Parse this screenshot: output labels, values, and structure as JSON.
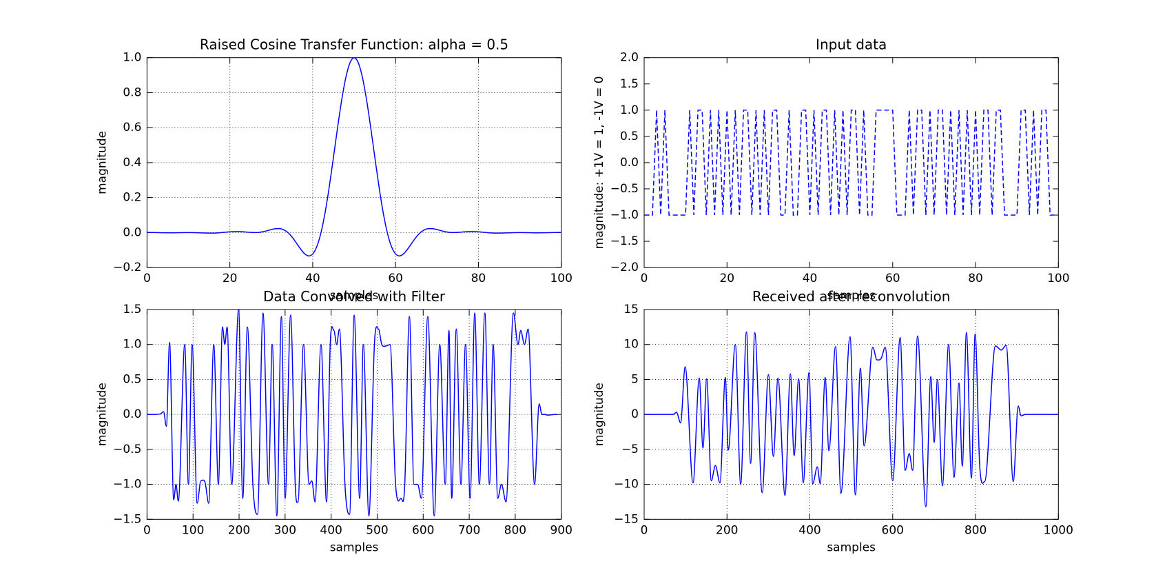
{
  "chart_data": [
    {
      "type": "line",
      "title": "Raised Cosine Transfer Function: alpha = 0.5",
      "xlabel": "samples",
      "ylabel": "magnitude",
      "color": "#0000ff",
      "linestyle": "solid",
      "grid": true,
      "xlim": [
        0,
        100
      ],
      "xticks": [
        0,
        20,
        40,
        60,
        80,
        100
      ],
      "ylim": [
        -0.2,
        1
      ],
      "yticks": [
        {
          "value": -0.2,
          "label": "−0.2"
        },
        {
          "value": 0,
          "label": "0.0"
        },
        0.2,
        0.4,
        0.6,
        0.8,
        {
          "value": 1,
          "label": "1.0"
        }
      ],
      "x": [
        0,
        2,
        4,
        6,
        8,
        10,
        12,
        14,
        16,
        18,
        20,
        22,
        24,
        25,
        26,
        27,
        28,
        29,
        30,
        31,
        32,
        33,
        34,
        35,
        36,
        37,
        38,
        39,
        40,
        41,
        42,
        43,
        44,
        45,
        46,
        47,
        48,
        49,
        50,
        51,
        52,
        53,
        54,
        55,
        56,
        57,
        58,
        59,
        60,
        61,
        62,
        63,
        64,
        65,
        66,
        67,
        68,
        69,
        70,
        71,
        72,
        73,
        74,
        75,
        76,
        78,
        80,
        82,
        84,
        86,
        88,
        90,
        92,
        94,
        96,
        98,
        100
      ],
      "values": [
        0.0009,
        0,
        -0.0011,
        -0.0014,
        -0.0006,
        0,
        -0.0008,
        -0.0026,
        -0.0029,
        0,
        0.0042,
        0.0057,
        0.0028,
        0.0009,
        0,
        0.0011,
        0.0048,
        0.0106,
        0.0171,
        0.0222,
        0.0227,
        0.016,
        0,
        -0.0253,
        -0.0576,
        -0.0917,
        -0.12,
        -0.1334,
        -0.1225,
        -0.0795,
        0,
        0.1159,
        0.2625,
        0.429,
        0.6002,
        0.7587,
        0.8873,
        0.971,
        1,
        0.971,
        0.8873,
        0.7587,
        0.6002,
        0.429,
        0.2625,
        0.1159,
        0,
        -0.0795,
        -0.1225,
        -0.1334,
        -0.12,
        -0.0917,
        -0.0576,
        -0.0253,
        0,
        0.016,
        0.0227,
        0.0222,
        0.0171,
        0.0106,
        0.0048,
        0.0011,
        0,
        0.0009,
        0.0028,
        0.0057,
        0.0042,
        0,
        -0.0029,
        -0.0026,
        -0.0008,
        0,
        -0.0006,
        -0.0014,
        -0.0011,
        0,
        0.0009
      ]
    },
    {
      "type": "line",
      "title": "Input data",
      "xlabel": "samples",
      "ylabel": "magnitude: +1V = 1, -1V = 0",
      "color": "#0000ff",
      "linestyle": "dashed",
      "grid": false,
      "xlim": [
        0,
        100
      ],
      "xticks": [
        0,
        20,
        40,
        60,
        80,
        100
      ],
      "ylim": [
        -2,
        2
      ],
      "yticks": [
        {
          "value": -2,
          "label": "−2.0"
        },
        {
          "value": -1.5,
          "label": "−1.5"
        },
        {
          "value": -1,
          "label": "−1.0"
        },
        {
          "value": -0.5,
          "label": "−0.5"
        },
        {
          "value": 0,
          "label": "0.0"
        },
        0.5,
        {
          "value": 1,
          "label": "1.0"
        },
        1.5,
        {
          "value": 2,
          "label": "2.0"
        }
      ],
      "x": [
        0,
        1,
        2,
        3,
        4,
        5,
        6,
        7,
        8,
        9,
        10,
        11,
        12,
        13,
        14,
        15,
        16,
        17,
        18,
        19,
        20,
        21,
        22,
        23,
        24,
        25,
        26,
        27,
        28,
        29,
        30,
        31,
        32,
        33,
        34,
        35,
        36,
        37,
        38,
        39,
        40,
        41,
        42,
        43,
        44,
        45,
        46,
        47,
        48,
        49,
        50,
        51,
        52,
        53,
        54,
        55,
        56,
        57,
        58,
        59,
        60,
        61,
        62,
        63,
        64,
        65,
        66,
        67,
        68,
        69,
        70,
        71,
        72,
        73,
        74,
        75,
        76,
        77,
        78,
        79,
        80,
        81,
        82,
        83,
        84,
        85,
        86,
        87,
        88,
        89,
        90,
        91,
        92,
        93,
        94,
        95,
        96,
        97,
        98,
        99
      ],
      "values": [
        -1,
        -1,
        -1,
        1,
        -1,
        1,
        -1,
        -1,
        -1,
        -1,
        -1,
        1,
        -1,
        1,
        1,
        -1,
        1,
        -1,
        1,
        -1,
        1,
        -1,
        1,
        -1,
        1,
        1,
        -1,
        1,
        -1,
        1,
        -1,
        1,
        1,
        -1,
        -1,
        1,
        -1,
        -1,
        1,
        1,
        -1,
        1,
        -1,
        1,
        1,
        -1,
        1,
        -1,
        1,
        -1,
        1,
        1,
        -1,
        1,
        -1,
        -1,
        1,
        1,
        1,
        1,
        1,
        -1,
        -1,
        -1,
        1,
        -1,
        1,
        1,
        -1,
        1,
        -1,
        1,
        1,
        -1,
        1,
        -1,
        1,
        -1,
        1,
        -1,
        1,
        -1,
        1,
        1,
        -1,
        1,
        1,
        -1,
        -1,
        -1,
        -1,
        1,
        1,
        -1,
        1,
        -1,
        1,
        1,
        -1,
        -1
      ]
    },
    {
      "type": "line",
      "title": "Data Convolved with Filter",
      "xlabel": "samples",
      "ylabel": "magnitude",
      "color": "#0000ff",
      "linestyle": "solid",
      "grid": true,
      "xlim": [
        0,
        900
      ],
      "xticks": [
        0,
        100,
        200,
        300,
        400,
        500,
        600,
        700,
        800,
        900
      ],
      "ylim": [
        -1.5,
        1.5
      ],
      "yticks": [
        {
          "value": -1.5,
          "label": "−1.5"
        },
        {
          "value": -1,
          "label": "−1.0"
        },
        {
          "value": -0.5,
          "label": "−0.5"
        },
        {
          "value": 0,
          "label": "0.0"
        },
        0.5,
        {
          "value": 1,
          "label": "1.0"
        },
        1.5
      ],
      "x": [
        0,
        20,
        30,
        36,
        42,
        49,
        58,
        63,
        68,
        82,
        90,
        98,
        109,
        117,
        126,
        134,
        145,
        155,
        164,
        169,
        174,
        184,
        199,
        208,
        218,
        230,
        240,
        252,
        264,
        272,
        282,
        292,
        300,
        312,
        322,
        328,
        340,
        352,
        358,
        365,
        378,
        390,
        398,
        406,
        412,
        418,
        430,
        440,
        450,
        462,
        470,
        482,
        494,
        503,
        510,
        520,
        528,
        540,
        552,
        560,
        570,
        580,
        588,
        596,
        610,
        624,
        636,
        648,
        656,
        662,
        672,
        682,
        692,
        702,
        712,
        722,
        734,
        744,
        752,
        762,
        770,
        780,
        796,
        806,
        812,
        820,
        828,
        842,
        852,
        858,
        864,
        870,
        890
      ],
      "values": [
        0,
        0,
        0.01,
        0.04,
        -0.17,
        1.03,
        -1.22,
        -1,
        -1.24,
        1,
        -1,
        1,
        -1.27,
        -0.95,
        -0.97,
        -1.27,
        1,
        -1,
        1.25,
        1,
        1.25,
        -1,
        1.5,
        -1.2,
        1.25,
        -1,
        -1.43,
        1.45,
        -1,
        1,
        -1.45,
        1.4,
        -1.2,
        1.42,
        -1,
        -1.25,
        1,
        -1,
        -0.95,
        -1.25,
        1,
        -1.25,
        1,
        1.2,
        1,
        1.22,
        -1,
        -1.43,
        1.42,
        -1.2,
        1,
        -1.45,
        1,
        1.22,
        1,
        0.98,
        1,
        -1,
        -1.2,
        -1,
        1.4,
        -1,
        -1,
        -1.2,
        1.4,
        -1.45,
        1,
        -1,
        1.2,
        -1.2,
        1.22,
        -1,
        1,
        -1.2,
        1.45,
        -1,
        1.45,
        -1,
        1,
        -1.2,
        -1,
        -1.25,
        1.45,
        1,
        1.2,
        1,
        1.22,
        -1,
        0.15,
        0,
        0,
        -0.01,
        0
      ]
    },
    {
      "type": "line",
      "title": "Received after reconvolution",
      "xlabel": "samples",
      "ylabel": "magnitude",
      "color": "#0000ff",
      "linestyle": "solid",
      "grid": true,
      "xlim": [
        0,
        1000
      ],
      "xticks": [
        0,
        200,
        400,
        600,
        800,
        1000
      ],
      "ylim": [
        -15,
        15
      ],
      "yticks": [
        {
          "value": -15,
          "label": "−15"
        },
        {
          "value": -10,
          "label": "−10"
        },
        {
          "value": -5,
          "label": "−5"
        },
        0,
        5,
        10,
        15
      ],
      "x": [
        0,
        70,
        78,
        88,
        99,
        118,
        133,
        142,
        151,
        162,
        172,
        183,
        196,
        203,
        220,
        233,
        247,
        257,
        267,
        285,
        300,
        312,
        323,
        340,
        353,
        362,
        373,
        384,
        398,
        407,
        418,
        425,
        437,
        446,
        462,
        475,
        497,
        510,
        522,
        531,
        552,
        562,
        572,
        582,
        600,
        618,
        630,
        640,
        648,
        660,
        680,
        692,
        700,
        708,
        720,
        735,
        748,
        760,
        768,
        778,
        790,
        799,
        810,
        822,
        848,
        862,
        874,
        891,
        903,
        910,
        920,
        1000
      ],
      "values": [
        0,
        0,
        0.3,
        -1.2,
        6.8,
        -9.8,
        5.2,
        -4.8,
        5.1,
        -9.5,
        -7.3,
        -9.8,
        5.3,
        -5.1,
        10,
        -10,
        11.8,
        -7,
        11.7,
        -11.2,
        5.7,
        -6,
        5.2,
        -11.6,
        5.8,
        -5.9,
        5.1,
        -9.8,
        6,
        -9.9,
        -7.5,
        -9.9,
        5.3,
        -5.2,
        9.7,
        -11.3,
        11.1,
        -11.5,
        6.6,
        -4.5,
        9.6,
        7.8,
        8,
        9.6,
        -9.5,
        11,
        -8,
        -5.6,
        -8,
        11.2,
        -13.2,
        5.4,
        -4,
        5,
        -10.2,
        10,
        -9,
        4.5,
        -7.4,
        11.7,
        -9.1,
        11.5,
        -7.3,
        -9.6,
        9.8,
        9.2,
        9.9,
        -9.6,
        1.2,
        -0.2,
        0,
        0
      ]
    }
  ]
}
